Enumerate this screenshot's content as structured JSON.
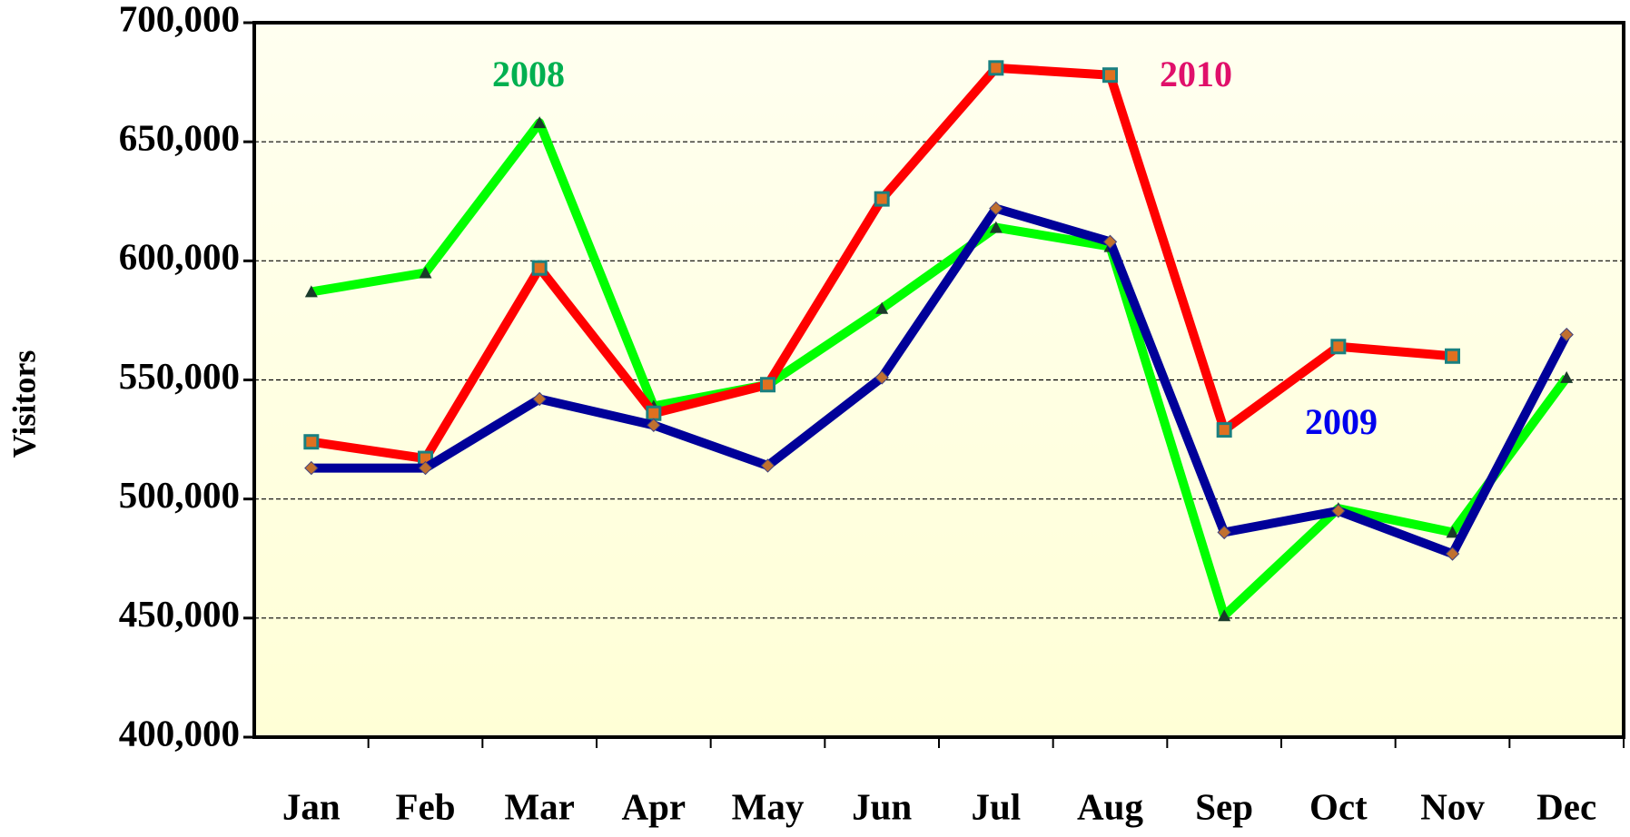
{
  "chart_data": {
    "type": "line",
    "y_label": "Visitors",
    "categories": [
      "Jan",
      "Feb",
      "Mar",
      "Apr",
      "May",
      "Jun",
      "Jul",
      "Aug",
      "Sep",
      "Oct",
      "Nov",
      "Dec"
    ],
    "series": [
      {
        "name": "2008",
        "color": "#00ff00",
        "values": [
          587000,
          595000,
          658000,
          539000,
          548000,
          580000,
          614000,
          606000,
          451000,
          496000,
          486000,
          551000
        ]
      },
      {
        "name": "2010",
        "color": "#ff0000",
        "values": [
          524000,
          517000,
          597000,
          536000,
          548000,
          626000,
          681000,
          678000,
          529000,
          564000,
          560000,
          null
        ]
      },
      {
        "name": "2009",
        "color": "#000099",
        "values": [
          513000,
          513000,
          542000,
          531000,
          514000,
          551000,
          622000,
          608000,
          486000,
          495000,
          477000,
          569000
        ]
      }
    ],
    "ylim": [
      400000,
      700000
    ],
    "yticks": [
      {
        "value": 400000,
        "label": "400,000"
      },
      {
        "value": 450000,
        "label": "450,000"
      },
      {
        "value": 500000,
        "label": "500,000"
      },
      {
        "value": 550000,
        "label": "550,000"
      },
      {
        "value": 600000,
        "label": "600,000"
      },
      {
        "value": 650000,
        "label": "650,000"
      },
      {
        "value": 700000,
        "label": "700,000"
      }
    ],
    "grid": true
  }
}
